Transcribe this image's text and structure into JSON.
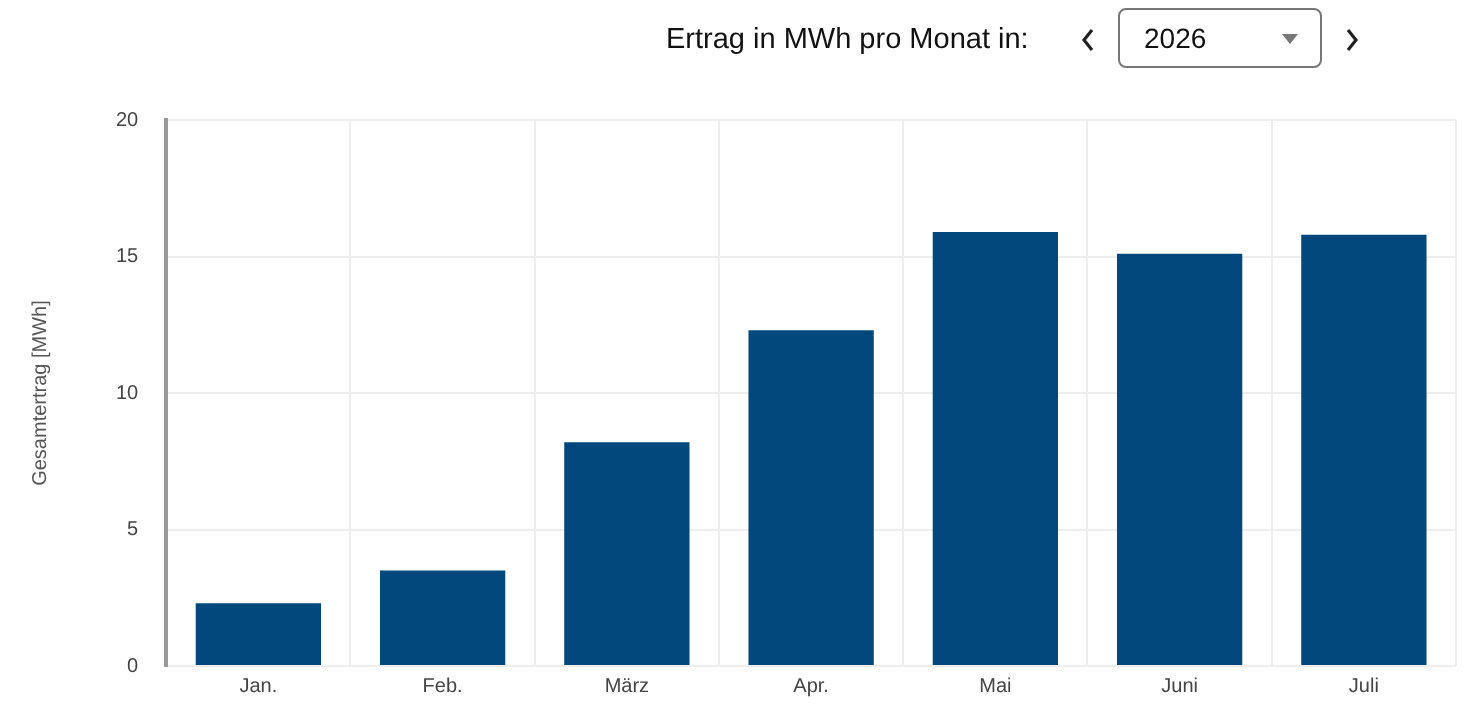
{
  "chart_data": {
    "type": "bar",
    "title": "Ertrag in MWh pro Monat in:",
    "subtitle": "2026",
    "ylabel": "Gesamtertrag [MWh]",
    "categories": [
      "Jan.",
      "Feb.",
      "März",
      "Apr.",
      "Mai",
      "Juni",
      "Juli"
    ],
    "values": [
      2.3,
      3.5,
      8.2,
      12.3,
      15.9,
      15.1,
      15.8
    ],
    "color": "#02487c",
    "ylim": [
      0,
      20
    ],
    "yticks": [
      0,
      5,
      10,
      15,
      20
    ],
    "grid": true,
    "legend": false
  }
}
